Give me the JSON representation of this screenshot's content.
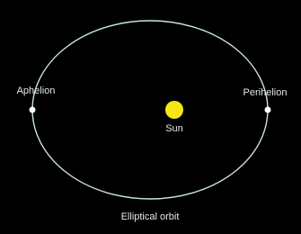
{
  "nodes": [
    {
      "label": "Aphelion"
    },
    {
      "label": "Perihelion"
    },
    {
      "label": "Sun"
    }
  ],
  "orbit": {
    "label": "Elliptical orbit"
  }
}
